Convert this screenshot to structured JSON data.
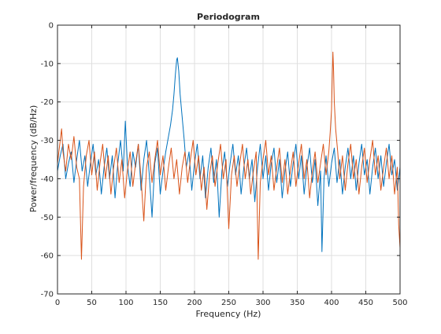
{
  "chart_data": {
    "type": "line",
    "title": "Periodogram",
    "xlabel": "Frequency (Hz)",
    "ylabel": "Power/frequency (dB/Hz)",
    "xlim": [
      0,
      500
    ],
    "ylim": [
      -70,
      0
    ],
    "xticks": [
      0,
      50,
      100,
      150,
      200,
      250,
      300,
      350,
      400,
      450,
      500
    ],
    "yticks": [
      0,
      -10,
      -20,
      -30,
      -40,
      -50,
      -60,
      -70
    ],
    "grid": true,
    "legend": "none",
    "series": [
      {
        "color": "#0072bd",
        "points": [
          [
            0,
            -38
          ],
          [
            4,
            -34
          ],
          [
            8,
            -31
          ],
          [
            12,
            -40
          ],
          [
            16,
            -36
          ],
          [
            20,
            -33
          ],
          [
            24,
            -41
          ],
          [
            28,
            -35
          ],
          [
            32,
            -30
          ],
          [
            36,
            -38
          ],
          [
            40,
            -34
          ],
          [
            44,
            -42
          ],
          [
            48,
            -36
          ],
          [
            52,
            -31
          ],
          [
            56,
            -39
          ],
          [
            60,
            -35
          ],
          [
            64,
            -44
          ],
          [
            68,
            -37
          ],
          [
            72,
            -32
          ],
          [
            76,
            -40
          ],
          [
            80,
            -34
          ],
          [
            84,
            -45
          ],
          [
            88,
            -36
          ],
          [
            92,
            -30
          ],
          [
            96,
            -38
          ],
          [
            99,
            -25
          ],
          [
            102,
            -36
          ],
          [
            106,
            -42
          ],
          [
            110,
            -33
          ],
          [
            114,
            -37
          ],
          [
            118,
            -31
          ],
          [
            122,
            -43
          ],
          [
            126,
            -35
          ],
          [
            130,
            -30
          ],
          [
            134,
            -39
          ],
          [
            138,
            -50
          ],
          [
            142,
            -36
          ],
          [
            146,
            -32
          ],
          [
            150,
            -44
          ],
          [
            154,
            -38
          ],
          [
            158,
            -33
          ],
          [
            162,
            -29
          ],
          [
            165,
            -26
          ],
          [
            168,
            -22
          ],
          [
            170,
            -18
          ],
          [
            172,
            -13
          ],
          [
            174,
            -9
          ],
          [
            175,
            -8.5
          ],
          [
            177,
            -12
          ],
          [
            179,
            -18
          ],
          [
            182,
            -24
          ],
          [
            185,
            -30
          ],
          [
            188,
            -37
          ],
          [
            192,
            -33
          ],
          [
            196,
            -43
          ],
          [
            200,
            -36
          ],
          [
            204,
            -31
          ],
          [
            208,
            -40
          ],
          [
            212,
            -34
          ],
          [
            216,
            -45
          ],
          [
            220,
            -37
          ],
          [
            224,
            -32
          ],
          [
            228,
            -41
          ],
          [
            232,
            -35
          ],
          [
            236,
            -50
          ],
          [
            240,
            -38
          ],
          [
            244,
            -33
          ],
          [
            248,
            -42
          ],
          [
            252,
            -36
          ],
          [
            256,
            -31
          ],
          [
            260,
            -39
          ],
          [
            264,
            -34
          ],
          [
            268,
            -44
          ],
          [
            272,
            -37
          ],
          [
            276,
            -32
          ],
          [
            280,
            -40
          ],
          [
            284,
            -35
          ],
          [
            288,
            -46
          ],
          [
            292,
            -37
          ],
          [
            296,
            -31
          ],
          [
            300,
            -40
          ],
          [
            304,
            -34
          ],
          [
            308,
            -43
          ],
          [
            312,
            -36
          ],
          [
            316,
            -32
          ],
          [
            320,
            -41
          ],
          [
            324,
            -35
          ],
          [
            328,
            -45
          ],
          [
            332,
            -38
          ],
          [
            336,
            -33
          ],
          [
            340,
            -42
          ],
          [
            344,
            -36
          ],
          [
            348,
            -31
          ],
          [
            352,
            -40
          ],
          [
            356,
            -34
          ],
          [
            360,
            -44
          ],
          [
            364,
            -37
          ],
          [
            368,
            -32
          ],
          [
            372,
            -41
          ],
          [
            376,
            -35
          ],
          [
            380,
            -47
          ],
          [
            384,
            -38
          ],
          [
            386,
            -59
          ],
          [
            389,
            -40
          ],
          [
            392,
            -34
          ],
          [
            396,
            -42
          ],
          [
            400,
            -36
          ],
          [
            404,
            -32
          ],
          [
            408,
            -41
          ],
          [
            412,
            -35
          ],
          [
            416,
            -44
          ],
          [
            420,
            -37
          ],
          [
            424,
            -32
          ],
          [
            428,
            -40
          ],
          [
            432,
            -34
          ],
          [
            436,
            -43
          ],
          [
            440,
            -36
          ],
          [
            444,
            -31
          ],
          [
            448,
            -39
          ],
          [
            452,
            -35
          ],
          [
            456,
            -44
          ],
          [
            460,
            -37
          ],
          [
            464,
            -32
          ],
          [
            468,
            -40
          ],
          [
            472,
            -34
          ],
          [
            476,
            -42
          ],
          [
            480,
            -36
          ],
          [
            484,
            -31
          ],
          [
            488,
            -39
          ],
          [
            492,
            -35
          ],
          [
            496,
            -43
          ],
          [
            500,
            -37
          ]
        ]
      },
      {
        "color": "#d95319",
        "points": [
          [
            0,
            -36
          ],
          [
            4,
            -30
          ],
          [
            6,
            -27
          ],
          [
            8,
            -33
          ],
          [
            12,
            -38
          ],
          [
            16,
            -31
          ],
          [
            20,
            -35
          ],
          [
            24,
            -29
          ],
          [
            28,
            -37
          ],
          [
            32,
            -40
          ],
          [
            35,
            -61
          ],
          [
            38,
            -42
          ],
          [
            42,
            -34
          ],
          [
            46,
            -30
          ],
          [
            50,
            -39
          ],
          [
            54,
            -33
          ],
          [
            58,
            -43
          ],
          [
            62,
            -36
          ],
          [
            66,
            -31
          ],
          [
            70,
            -40
          ],
          [
            74,
            -34
          ],
          [
            78,
            -44
          ],
          [
            82,
            -37
          ],
          [
            86,
            -32
          ],
          [
            90,
            -41
          ],
          [
            94,
            -35
          ],
          [
            98,
            -45
          ],
          [
            102,
            -38
          ],
          [
            106,
            -33
          ],
          [
            110,
            -42
          ],
          [
            114,
            -36
          ],
          [
            118,
            -31
          ],
          [
            122,
            -40
          ],
          [
            126,
            -51
          ],
          [
            130,
            -37
          ],
          [
            134,
            -33
          ],
          [
            138,
            -41
          ],
          [
            142,
            -35
          ],
          [
            146,
            -30
          ],
          [
            150,
            -39
          ],
          [
            154,
            -34
          ],
          [
            158,
            -43
          ],
          [
            162,
            -37
          ],
          [
            166,
            -32
          ],
          [
            170,
            -40
          ],
          [
            174,
            -35
          ],
          [
            178,
            -44
          ],
          [
            182,
            -37
          ],
          [
            186,
            -33
          ],
          [
            190,
            -41
          ],
          [
            194,
            -35
          ],
          [
            198,
            -30
          ],
          [
            202,
            -39
          ],
          [
            206,
            -34
          ],
          [
            210,
            -43
          ],
          [
            214,
            -37
          ],
          [
            218,
            -48
          ],
          [
            222,
            -39
          ],
          [
            226,
            -34
          ],
          [
            230,
            -42
          ],
          [
            234,
            -36
          ],
          [
            238,
            -31
          ],
          [
            242,
            -40
          ],
          [
            246,
            -35
          ],
          [
            250,
            -53
          ],
          [
            254,
            -39
          ],
          [
            258,
            -34
          ],
          [
            262,
            -42
          ],
          [
            266,
            -36
          ],
          [
            270,
            -31
          ],
          [
            274,
            -40
          ],
          [
            278,
            -35
          ],
          [
            282,
            -44
          ],
          [
            286,
            -38
          ],
          [
            290,
            -33
          ],
          [
            293,
            -61
          ],
          [
            296,
            -41
          ],
          [
            300,
            -35
          ],
          [
            304,
            -30
          ],
          [
            308,
            -39
          ],
          [
            312,
            -34
          ],
          [
            316,
            -43
          ],
          [
            320,
            -37
          ],
          [
            324,
            -32
          ],
          [
            328,
            -41
          ],
          [
            332,
            -35
          ],
          [
            336,
            -44
          ],
          [
            340,
            -38
          ],
          [
            344,
            -33
          ],
          [
            348,
            -42
          ],
          [
            352,
            -36
          ],
          [
            356,
            -31
          ],
          [
            360,
            -40
          ],
          [
            364,
            -35
          ],
          [
            368,
            -45
          ],
          [
            372,
            -38
          ],
          [
            376,
            -33
          ],
          [
            380,
            -41
          ],
          [
            384,
            -36
          ],
          [
            388,
            -31
          ],
          [
            392,
            -39
          ],
          [
            396,
            -33
          ],
          [
            398,
            -28
          ],
          [
            400,
            -22
          ],
          [
            401,
            -14
          ],
          [
            402,
            -7
          ],
          [
            403,
            -12
          ],
          [
            404,
            -20
          ],
          [
            406,
            -27
          ],
          [
            409,
            -33
          ],
          [
            412,
            -40
          ],
          [
            416,
            -34
          ],
          [
            420,
            -43
          ],
          [
            424,
            -36
          ],
          [
            428,
            -31
          ],
          [
            432,
            -40
          ],
          [
            436,
            -35
          ],
          [
            440,
            -44
          ],
          [
            444,
            -37
          ],
          [
            448,
            -32
          ],
          [
            452,
            -41
          ],
          [
            456,
            -35
          ],
          [
            460,
            -30
          ],
          [
            464,
            -39
          ],
          [
            468,
            -34
          ],
          [
            472,
            -43
          ],
          [
            476,
            -37
          ],
          [
            480,
            -32
          ],
          [
            484,
            -40
          ],
          [
            488,
            -34
          ],
          [
            492,
            -44
          ],
          [
            496,
            -37
          ],
          [
            498,
            -52
          ],
          [
            500,
            -58
          ]
        ]
      }
    ]
  }
}
